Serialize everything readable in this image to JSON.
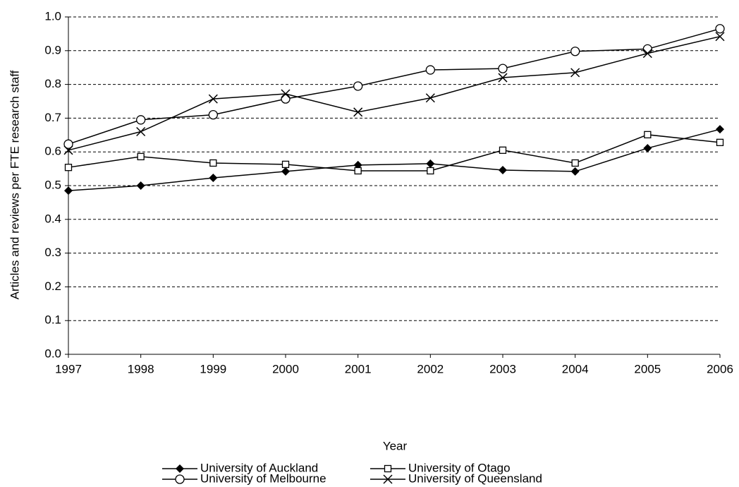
{
  "chart_data": {
    "type": "line",
    "x_label": "Year",
    "y_label": "Articles and reviews per FTE research staff",
    "categories": [
      "1997",
      "1998",
      "1999",
      "2000",
      "2001",
      "2002",
      "2003",
      "2004",
      "2005",
      "2006"
    ],
    "series": [
      {
        "name": "University of Auckland",
        "color": "#000000",
        "marker": "diamond",
        "values": [
          0.485,
          0.5,
          0.523,
          0.542,
          0.561,
          0.565,
          0.546,
          0.542,
          0.611,
          0.667
        ]
      },
      {
        "name": "University of Otago",
        "color": "#000000",
        "marker": "square",
        "values": [
          0.554,
          0.586,
          0.567,
          0.563,
          0.544,
          0.544,
          0.605,
          0.567,
          0.651,
          0.628
        ]
      },
      {
        "name": "University of Melbourne",
        "color": "#000000",
        "marker": "circle",
        "values": [
          0.623,
          0.695,
          0.71,
          0.757,
          0.795,
          0.843,
          0.847,
          0.898,
          0.905,
          0.965
        ]
      },
      {
        "name": "University of Queensland",
        "color": "#000000",
        "marker": "x",
        "values": [
          0.605,
          0.66,
          0.757,
          0.772,
          0.718,
          0.76,
          0.82,
          0.835,
          0.892,
          0.942
        ]
      }
    ],
    "ylim": [
      0,
      1
    ],
    "yticks": [
      {
        "value": 0,
        "label": "0.0"
      },
      0.1,
      0.2,
      0.3,
      0.4,
      0.5,
      0.6,
      0.7,
      0.8,
      0.9,
      {
        "value": 1,
        "label": "1.0"
      }
    ],
    "grid": true
  }
}
